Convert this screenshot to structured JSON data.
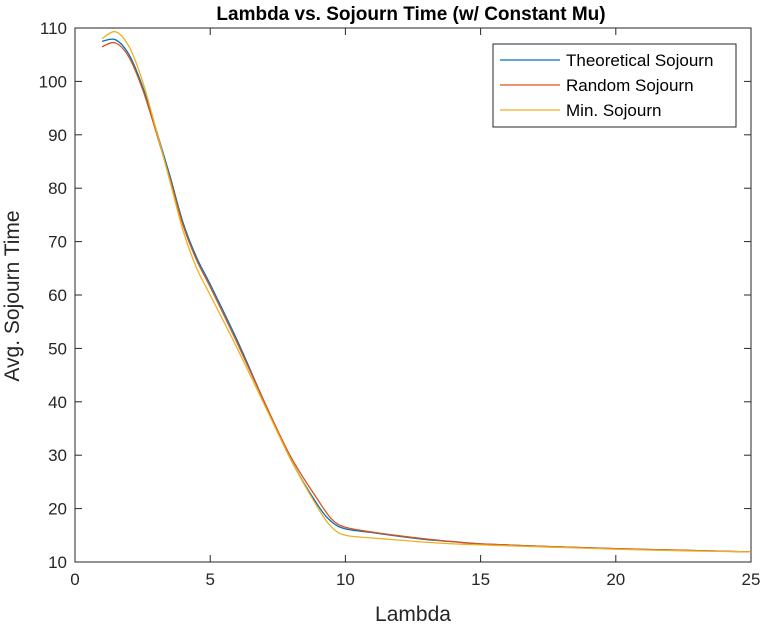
{
  "chart_data": {
    "type": "line",
    "title": "Lambda vs. Sojourn Time (w/ Constant Mu)",
    "xlabel": "Lambda",
    "ylabel": "Avg. Sojourn Time",
    "xlim": [
      0,
      25
    ],
    "ylim": [
      10,
      110
    ],
    "xticks": [
      0,
      5,
      10,
      15,
      20,
      25
    ],
    "yticks": [
      10,
      20,
      30,
      40,
      50,
      60,
      70,
      80,
      90,
      100,
      110
    ],
    "grid": false,
    "legend_position": "top-right",
    "series": [
      {
        "name": "Theoretical Sojourn",
        "color": "#0072BD",
        "x": [
          1.0,
          1.5,
          2.0,
          2.5,
          3.0,
          3.5,
          4.0,
          4.5,
          5.0,
          6.0,
          7.0,
          8.0,
          9.0,
          9.5,
          10.0,
          11.0,
          12.0,
          13.0,
          14.0,
          15.0,
          17.5,
          20.0,
          22.5,
          25.0
        ],
        "y": [
          107.5,
          107.8,
          105.0,
          99.0,
          91.0,
          82.5,
          73.5,
          67.0,
          62.0,
          51.5,
          40.0,
          29.0,
          20.5,
          17.5,
          16.2,
          15.5,
          14.8,
          14.2,
          13.8,
          13.4,
          12.9,
          12.5,
          12.2,
          11.9
        ]
      },
      {
        "name": "Random Sojourn",
        "color": "#D95319",
        "x": [
          1.0,
          1.5,
          2.0,
          2.5,
          3.0,
          3.5,
          4.0,
          4.5,
          5.0,
          6.0,
          7.0,
          8.0,
          9.0,
          9.5,
          10.0,
          11.0,
          12.0,
          13.0,
          14.0,
          15.0,
          17.5,
          20.0,
          22.5,
          25.0
        ],
        "y": [
          106.5,
          107.2,
          104.5,
          98.5,
          90.5,
          82.0,
          73.0,
          66.5,
          61.5,
          51.0,
          40.0,
          29.5,
          21.5,
          18.0,
          16.5,
          15.6,
          14.9,
          14.3,
          13.8,
          13.4,
          12.9,
          12.5,
          12.2,
          11.9
        ]
      },
      {
        "name": "Min. Sojourn",
        "color": "#EDB120",
        "x": [
          1.0,
          1.5,
          2.0,
          2.5,
          3.0,
          3.5,
          4.0,
          4.5,
          5.0,
          6.0,
          7.0,
          8.0,
          9.0,
          9.5,
          10.0,
          11.0,
          12.0,
          13.0,
          14.0,
          15.0,
          17.5,
          20.0,
          22.5,
          25.0
        ],
        "y": [
          108.0,
          109.3,
          106.5,
          100.0,
          91.0,
          81.5,
          72.0,
          65.0,
          60.0,
          50.0,
          39.5,
          29.0,
          20.0,
          16.5,
          15.0,
          14.5,
          14.1,
          13.7,
          13.4,
          13.2,
          12.8,
          12.4,
          12.1,
          11.9
        ]
      }
    ]
  }
}
